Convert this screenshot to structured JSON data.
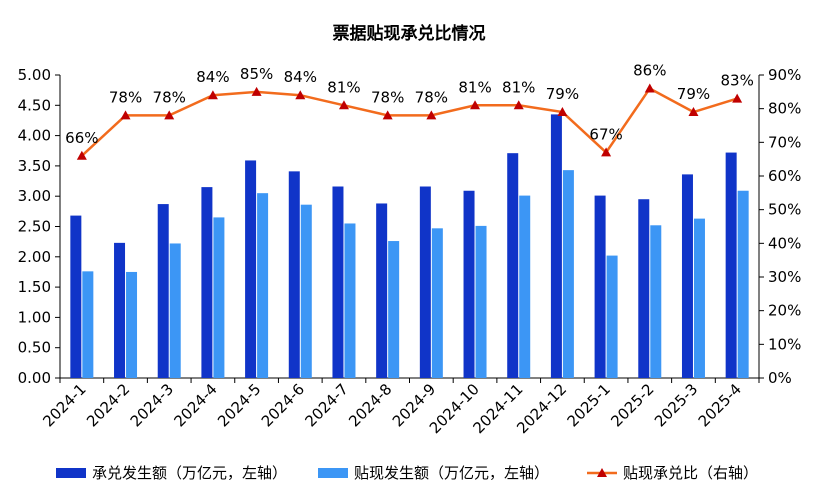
{
  "chart_data": {
    "type": "bar",
    "title": "票据贴现承兑比情况",
    "categories": [
      "2024-1",
      "2024-2",
      "2024-3",
      "2024-4",
      "2024-5",
      "2024-6",
      "2024-7",
      "2024-8",
      "2024-9",
      "2024-10",
      "2024-11",
      "2024-12",
      "2025-1",
      "2025-2",
      "2025-3",
      "2025-4"
    ],
    "series": [
      {
        "name": "承兑发生额（万亿元，左轴）",
        "kind": "bar",
        "axis": "left",
        "color": "#1034c8",
        "values": [
          2.68,
          2.23,
          2.87,
          3.15,
          3.59,
          3.41,
          3.16,
          2.88,
          3.16,
          3.09,
          3.71,
          4.35,
          3.01,
          2.95,
          3.36,
          3.72
        ]
      },
      {
        "name": "贴现发生额（万亿元，左轴）",
        "kind": "bar",
        "axis": "left",
        "color": "#3c96f5",
        "values": [
          1.76,
          1.75,
          2.22,
          2.65,
          3.05,
          2.86,
          2.55,
          2.26,
          2.47,
          2.51,
          3.01,
          3.43,
          2.02,
          2.52,
          2.63,
          3.09
        ]
      },
      {
        "name": "贴现承兑比（右轴）",
        "kind": "line",
        "axis": "right",
        "color": "#f26b1d",
        "marker_color": "#c00000",
        "values": [
          66,
          78,
          78,
          84,
          85,
          84,
          81,
          78,
          78,
          81,
          81,
          79,
          67,
          86,
          79,
          83
        ],
        "labels": [
          "66%",
          "78%",
          "78%",
          "84%",
          "85%",
          "84%",
          "81%",
          "78%",
          "78%",
          "81%",
          "81%",
          "79%",
          "67%",
          "86%",
          "79%",
          "83%"
        ]
      }
    ],
    "y_left": {
      "range": [
        0,
        5
      ],
      "ticks": [
        "0.00",
        "0.50",
        "1.00",
        "1.50",
        "2.00",
        "2.50",
        "3.00",
        "3.50",
        "4.00",
        "4.50",
        "5.00"
      ]
    },
    "y_right": {
      "range": [
        0,
        90
      ],
      "ticks": [
        "0%",
        "10%",
        "20%",
        "30%",
        "40%",
        "50%",
        "60%",
        "70%",
        "80%",
        "90%"
      ]
    },
    "grid": false,
    "legend_position": "bottom"
  }
}
